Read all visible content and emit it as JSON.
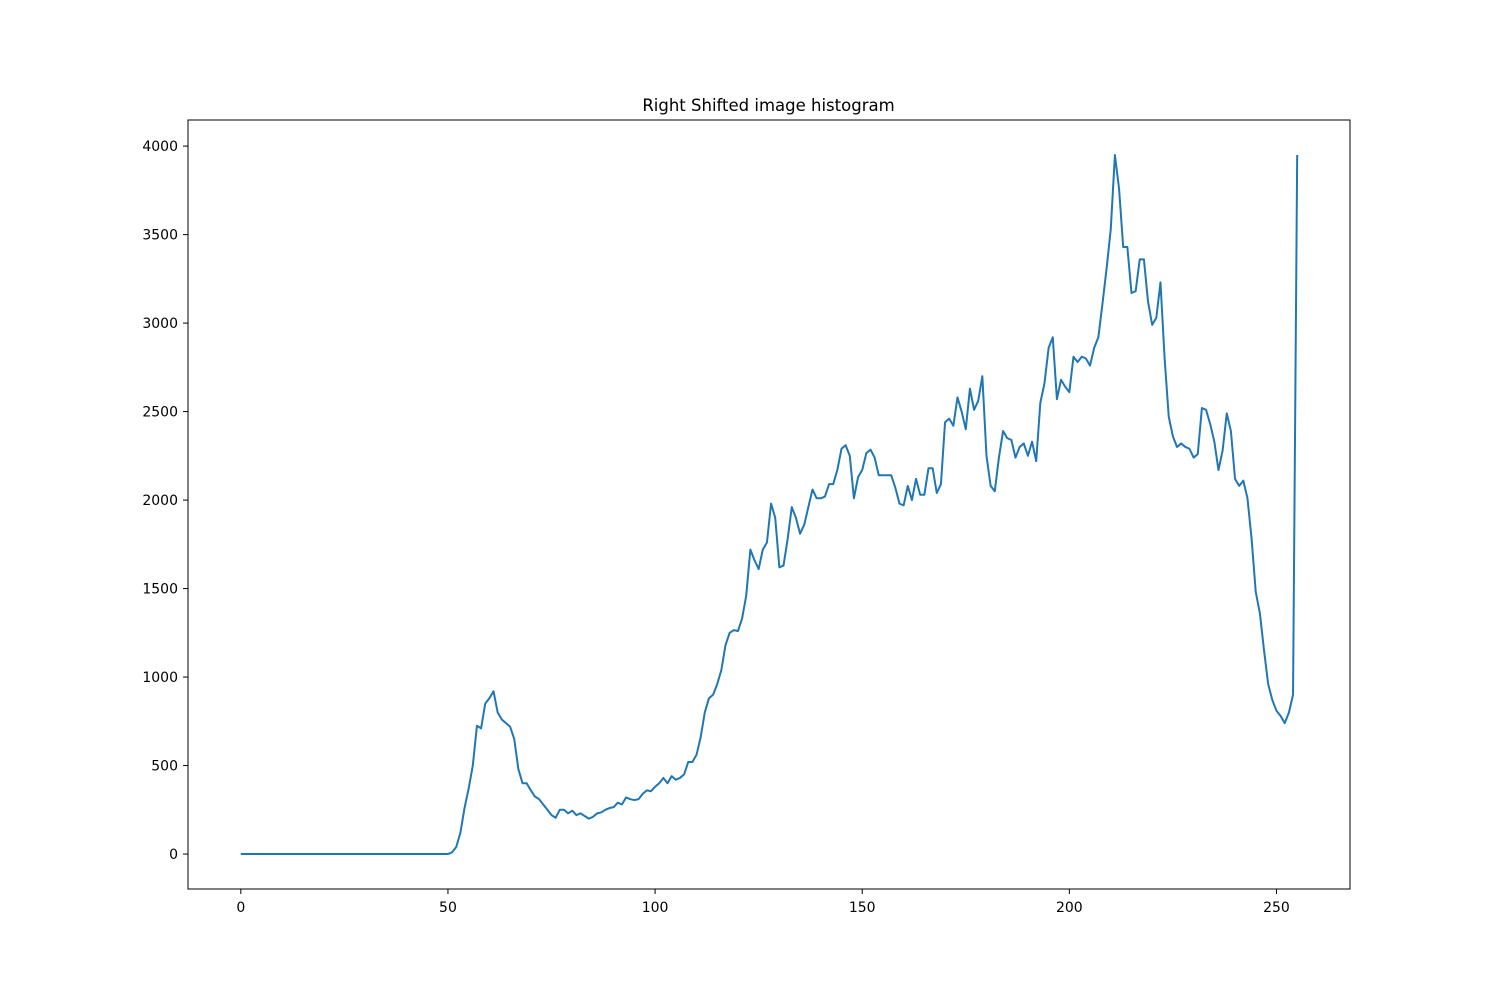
{
  "chart_data": {
    "type": "line",
    "title": "Right Shifted image histogram",
    "xlabel": "",
    "ylabel": "",
    "xlim": [
      -12.75,
      267.75
    ],
    "ylim": [
      -197.5,
      4147.5
    ],
    "xticks": [
      0,
      50,
      100,
      150,
      200,
      250
    ],
    "yticks": [
      0,
      500,
      1000,
      1500,
      2000,
      2500,
      3000,
      3500,
      4000
    ],
    "grid": false,
    "legend": "none",
    "line_color": "#1f77b4",
    "series": [
      {
        "x_start": 0,
        "x_step": 1,
        "values": [
          0,
          0,
          0,
          0,
          0,
          0,
          0,
          0,
          0,
          0,
          0,
          0,
          0,
          0,
          0,
          0,
          0,
          0,
          0,
          0,
          0,
          0,
          0,
          0,
          0,
          0,
          0,
          0,
          0,
          0,
          0,
          0,
          0,
          0,
          0,
          0,
          0,
          0,
          0,
          0,
          0,
          0,
          0,
          0,
          0,
          0,
          0,
          0,
          0,
          0,
          0,
          10,
          40,
          120,
          260,
          370,
          500,
          725,
          710,
          850,
          880,
          920,
          800,
          760,
          740,
          720,
          650,
          480,
          400,
          400,
          360,
          325,
          310,
          280,
          250,
          220,
          205,
          250,
          250,
          230,
          245,
          220,
          230,
          215,
          200,
          210,
          230,
          235,
          250,
          260,
          265,
          290,
          280,
          320,
          310,
          305,
          310,
          340,
          360,
          355,
          380,
          400,
          430,
          400,
          440,
          420,
          430,
          450,
          520,
          520,
          560,
          660,
          800,
          880,
          900,
          960,
          1040,
          1180,
          1250,
          1265,
          1260,
          1330,
          1460,
          1720,
          1660,
          1610,
          1720,
          1760,
          1980,
          1900,
          1620,
          1630,
          1780,
          1960,
          1900,
          1810,
          1860,
          1960,
          2060,
          2010,
          2010,
          2020,
          2090,
          2090,
          2170,
          2290,
          2310,
          2250,
          2010,
          2130,
          2170,
          2265,
          2285,
          2240,
          2140,
          2140,
          2140,
          2140,
          2070,
          1980,
          1970,
          2080,
          2000,
          2120,
          2030,
          2030,
          2180,
          2180,
          2040,
          2090,
          2440,
          2460,
          2420,
          2580,
          2500,
          2400,
          2630,
          2510,
          2560,
          2700,
          2250,
          2080,
          2050,
          2240,
          2390,
          2350,
          2340,
          2240,
          2300,
          2320,
          2250,
          2330,
          2220,
          2550,
          2660,
          2860,
          2920,
          2570,
          2680,
          2640,
          2610,
          2810,
          2780,
          2810,
          2800,
          2760,
          2860,
          2920,
          3110,
          3310,
          3530,
          3950,
          3760,
          3430,
          3430,
          3170,
          3180,
          3360,
          3360,
          3120,
          2990,
          3030,
          3230,
          2800,
          2470,
          2360,
          2300,
          2320,
          2300,
          2290,
          2240,
          2260,
          2520,
          2510,
          2430,
          2330,
          2170,
          2280,
          2490,
          2390,
          2120,
          2080,
          2110,
          2010,
          1780,
          1480,
          1360,
          1150,
          960,
          870,
          810,
          780,
          740,
          800,
          900,
          3950
        ]
      }
    ]
  }
}
